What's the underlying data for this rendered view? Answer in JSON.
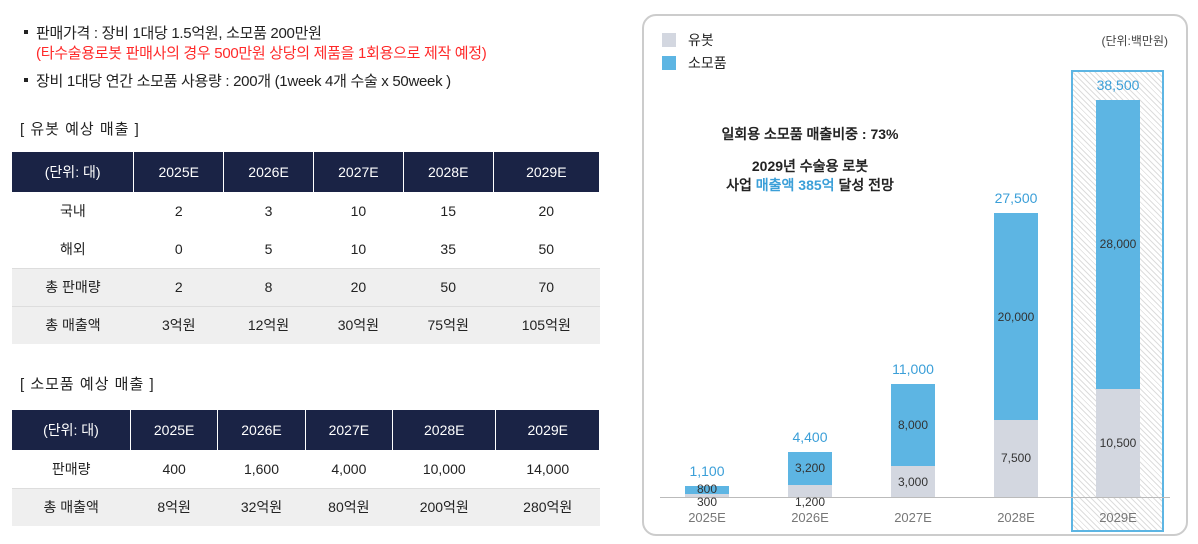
{
  "notes": {
    "price": "판매가격 : 장비 1대당 1.5억원, 소모품 200만원",
    "price_note": "(타수술용로봇 판매사의 경우 500만원 상당의 제품을 1회용으로 제작 예정)",
    "usage": "장비 1대당 연간 소모품 사용량 : 200개 (1week 4개 수술 x 50week )"
  },
  "table1": {
    "title": "[ 유봇 예상 매출 ]",
    "headers": [
      "(단위: 대)",
      "2025E",
      "2026E",
      "2027E",
      "2028E",
      "2029E"
    ],
    "rows": [
      [
        "국내",
        "2",
        "3",
        "10",
        "15",
        "20"
      ],
      [
        "해외",
        "0",
        "5",
        "10",
        "35",
        "50"
      ],
      [
        "총 판매량",
        "2",
        "8",
        "20",
        "50",
        "70"
      ],
      [
        "총 매출액",
        "3억원",
        "12억원",
        "30억원",
        "75억원",
        "105억원"
      ]
    ]
  },
  "table2": {
    "title": "[ 소모품 예상 매출 ]",
    "headers": [
      "(단위: 대)",
      "2025E",
      "2026E",
      "2027E",
      "2028E",
      "2029E"
    ],
    "rows": [
      [
        "판매량",
        "400",
        "1,600",
        "4,000",
        "10,000",
        "14,000"
      ],
      [
        "총 매출액",
        "8억원",
        "32억원",
        "80억원",
        "200억원",
        "280억원"
      ]
    ]
  },
  "chart_data": {
    "type": "bar",
    "stacked": true,
    "unit": "(단위:백만원)",
    "categories": [
      "2025E",
      "2026E",
      "2027E",
      "2028E",
      "2029E"
    ],
    "series": [
      {
        "name": "유봇",
        "color": "#d3d7e0",
        "values": [
          300,
          1200,
          3000,
          7500,
          10500
        ],
        "labels": [
          "300",
          "1,200",
          "3,000",
          "7,500",
          "10,500"
        ]
      },
      {
        "name": "소모품",
        "color": "#5db5e3",
        "values": [
          800,
          3200,
          8000,
          20000,
          28000
        ],
        "labels": [
          "800",
          "3,200",
          "8,000",
          "20,000",
          "28,000"
        ]
      }
    ],
    "totals": [
      "1,100",
      "4,400",
      "11,000",
      "27,500",
      "38,500"
    ],
    "highlight": "2029E",
    "annotation1": "일회용 소모품 매출비중 : 73%",
    "annotation2": "2029년 수술용 로봇",
    "annotation3_pre": "사업 ",
    "annotation3_hl": "매출액 385억",
    "annotation3_post": " 달성 전망"
  }
}
